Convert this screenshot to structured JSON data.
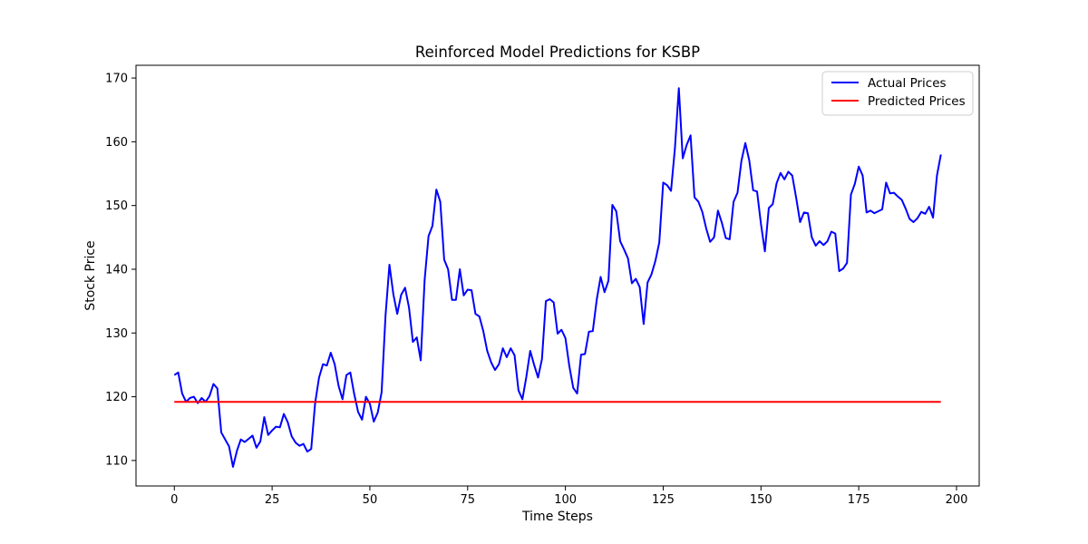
{
  "chart_data": {
    "type": "line",
    "title": "Reinforced Model Predictions for KSBP",
    "xlabel": "Time Steps",
    "ylabel": "Stock Price",
    "xlim": [
      -9.8,
      205.8
    ],
    "ylim": [
      106.0,
      172.0
    ],
    "xticks": [
      0,
      25,
      50,
      75,
      100,
      125,
      150,
      175,
      200
    ],
    "yticks": [
      110,
      120,
      130,
      140,
      150,
      160,
      170
    ],
    "grid": false,
    "legend_position": "top-right",
    "series": [
      {
        "name": "Actual Prices",
        "color": "#0000ff",
        "x": [
          0,
          1,
          2,
          3,
          4,
          5,
          6,
          7,
          8,
          9,
          10,
          11,
          12,
          13,
          14,
          15,
          16,
          17,
          18,
          19,
          20,
          21,
          22,
          23,
          24,
          25,
          26,
          27,
          28,
          29,
          30,
          31,
          32,
          33,
          34,
          35,
          36,
          37,
          38,
          39,
          40,
          41,
          42,
          43,
          44,
          45,
          46,
          47,
          48,
          49,
          50,
          51,
          52,
          53,
          54,
          55,
          56,
          57,
          58,
          59,
          60,
          61,
          62,
          63,
          64,
          65,
          66,
          67,
          68,
          69,
          70,
          71,
          72,
          73,
          74,
          75,
          76,
          77,
          78,
          79,
          80,
          81,
          82,
          83,
          84,
          85,
          86,
          87,
          88,
          89,
          90,
          91,
          92,
          93,
          94,
          95,
          96,
          97,
          98,
          99,
          100,
          101,
          102,
          103,
          104,
          105,
          106,
          107,
          108,
          109,
          110,
          111,
          112,
          113,
          114,
          115,
          116,
          117,
          118,
          119,
          120,
          121,
          122,
          123,
          124,
          125,
          126,
          127,
          128,
          129,
          130,
          131,
          132,
          133,
          134,
          135,
          136,
          137,
          138,
          139,
          140,
          141,
          142,
          143,
          144,
          145,
          146,
          147,
          148,
          149,
          150,
          151,
          152,
          153,
          154,
          155,
          156,
          157,
          158,
          159,
          160,
          161,
          162,
          163,
          164,
          165,
          166,
          167,
          168,
          169,
          170,
          171,
          172,
          173,
          174,
          175,
          176,
          177,
          178,
          179,
          180,
          181,
          182,
          183,
          184,
          185,
          186,
          187,
          188,
          189,
          190,
          191,
          192,
          193,
          194,
          195,
          196
        ],
        "y": [
          123.4,
          123.8,
          120.5,
          119.2,
          119.8,
          120.0,
          119.0,
          119.8,
          119.2,
          120.1,
          122.0,
          121.3,
          114.4,
          113.3,
          112.2,
          109.0,
          111.5,
          113.3,
          112.9,
          113.4,
          113.9,
          112.0,
          113.0,
          116.8,
          114.0,
          114.7,
          115.3,
          115.2,
          117.3,
          116.0,
          113.8,
          112.8,
          112.3,
          112.6,
          111.4,
          111.8,
          119.0,
          123.0,
          125.1,
          124.9,
          126.9,
          125.1,
          121.7,
          119.6,
          123.4,
          123.8,
          120.4,
          117.6,
          116.4,
          120.0,
          118.9,
          116.1,
          117.5,
          120.7,
          132.7,
          140.7,
          136.1,
          133.0,
          136.0,
          137.1,
          134.0,
          128.6,
          129.3,
          125.7,
          138.3,
          145.2,
          146.8,
          152.5,
          150.6,
          141.5,
          140.0,
          135.2,
          135.2,
          140.0,
          135.9,
          136.8,
          136.7,
          133.0,
          132.6,
          130.3,
          127.2,
          125.4,
          124.2,
          125.1,
          127.6,
          126.2,
          127.6,
          126.5,
          121.0,
          119.6,
          123.1,
          127.2,
          125.0,
          123.0,
          125.9,
          135.0,
          135.3,
          134.8,
          129.9,
          130.5,
          129.2,
          124.8,
          121.4,
          120.5,
          126.6,
          126.7,
          130.2,
          130.3,
          135.2,
          138.8,
          136.4,
          138.2,
          150.1,
          149.1,
          144.4,
          143.1,
          141.7,
          137.8,
          138.5,
          137.2,
          131.4,
          137.9,
          139.2,
          141.3,
          144.2,
          153.6,
          153.2,
          152.3,
          159.0,
          168.4,
          157.4,
          159.5,
          161.0,
          151.3,
          150.6,
          149.0,
          146.4,
          144.3,
          145.0,
          149.2,
          147.3,
          144.9,
          144.7,
          150.6,
          152.0,
          157.0,
          159.8,
          157.1,
          152.4,
          152.2,
          147.1,
          142.8,
          149.6,
          150.2,
          153.5,
          155.1,
          154.1,
          155.3,
          154.7,
          151.2,
          147.4,
          148.9,
          148.8,
          145.0,
          143.7,
          144.4,
          143.8,
          144.4,
          145.9,
          145.6,
          139.7,
          140.1,
          141.0,
          151.7,
          153.4,
          156.1,
          154.7,
          148.9,
          149.2,
          148.8,
          149.1,
          149.4,
          153.6,
          151.9,
          152.0,
          151.4,
          150.9,
          149.5,
          147.9,
          147.4,
          148.0,
          149.0,
          148.7,
          149.8,
          148.1,
          154.7,
          158.0
        ]
      },
      {
        "name": "Predicted Prices",
        "color": "#ff0000",
        "x": [
          0,
          196
        ],
        "y": [
          119.2,
          119.2
        ]
      }
    ]
  }
}
